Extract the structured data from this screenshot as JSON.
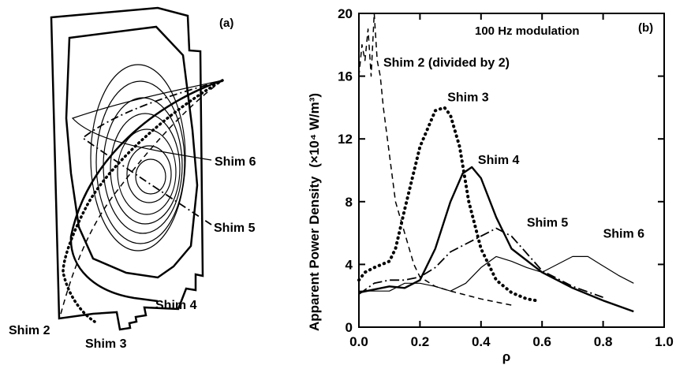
{
  "panel_a": {
    "label": "(a)",
    "shim_labels": [
      "Shim 2",
      "Shim 3",
      "Shim 4",
      "Shim 5",
      "Shim 6"
    ]
  },
  "chart_data": {
    "type": "line",
    "panel_label": "(b)",
    "title": "100 Hz modulation",
    "xlabel": "ρ",
    "ylabel": "Apparent Power Density (×10⁴ W/m³)",
    "ylabel_main": "Apparent  Power  Density",
    "ylabel_unit": "(×10⁴ W/m³)",
    "xlim": [
      0,
      1.0
    ],
    "ylim": [
      0,
      20
    ],
    "xticks": [
      "0.0",
      "0.2",
      "0.4",
      "0.6",
      "0.8",
      "1.0"
    ],
    "yticks": [
      "0",
      "4",
      "8",
      "12",
      "16",
      "20"
    ],
    "grid": false,
    "series": [
      {
        "name": "Shim 2 (divided by 2)",
        "style": "dashed",
        "x": [
          0.0,
          0.01,
          0.02,
          0.03,
          0.04,
          0.05,
          0.06,
          0.07,
          0.08,
          0.1,
          0.12,
          0.15,
          0.18,
          0.2,
          0.25,
          0.3,
          0.4,
          0.5
        ],
        "y": [
          16,
          18,
          17,
          19,
          16,
          20,
          17,
          16,
          14,
          11,
          8,
          6,
          4,
          3.2,
          2.6,
          2.3,
          1.8,
          1.4
        ]
      },
      {
        "name": "Shim 3",
        "style": "dotted",
        "x": [
          0.0,
          0.02,
          0.05,
          0.1,
          0.12,
          0.15,
          0.2,
          0.25,
          0.28,
          0.3,
          0.33,
          0.36,
          0.4,
          0.45,
          0.5,
          0.55,
          0.58
        ],
        "y": [
          3,
          3.5,
          3.8,
          4.2,
          5,
          7.5,
          11.5,
          13.8,
          14,
          13.5,
          11.5,
          8,
          5,
          3,
          2.2,
          1.8,
          1.7
        ]
      },
      {
        "name": "Shim 4",
        "style": "solid",
        "x": [
          0.0,
          0.05,
          0.1,
          0.15,
          0.2,
          0.25,
          0.3,
          0.34,
          0.37,
          0.4,
          0.45,
          0.5,
          0.6,
          0.7,
          0.8,
          0.9
        ],
        "y": [
          2.2,
          2.4,
          2.6,
          2.5,
          3,
          5,
          8,
          9.8,
          10.2,
          9.5,
          7,
          5,
          3.5,
          2.5,
          1.7,
          1.0
        ]
      },
      {
        "name": "Shim 5",
        "style": "dash-dot",
        "x": [
          0.0,
          0.05,
          0.1,
          0.15,
          0.2,
          0.25,
          0.3,
          0.35,
          0.4,
          0.45,
          0.5,
          0.6,
          0.7,
          0.8
        ],
        "y": [
          2.1,
          2.8,
          3.0,
          3.0,
          3.2,
          3.8,
          4.8,
          5.3,
          5.8,
          6.3,
          5.8,
          3.6,
          2.6,
          1.9
        ]
      },
      {
        "name": "Shim 6",
        "style": "thin",
        "x": [
          0.0,
          0.1,
          0.15,
          0.2,
          0.25,
          0.3,
          0.35,
          0.4,
          0.45,
          0.5,
          0.55,
          0.6,
          0.7,
          0.75,
          0.8,
          0.85,
          0.9
        ],
        "y": [
          2.3,
          2.3,
          2.8,
          2.8,
          2.6,
          2.3,
          2.8,
          3.8,
          4.5,
          4.2,
          3.8,
          3.5,
          4.5,
          4.5,
          3.9,
          3.3,
          2.8
        ]
      }
    ],
    "annotations": [
      {
        "text": "Shim 2 (divided by 2)",
        "x": 0.08,
        "y": 16.6
      },
      {
        "text": "Shim 3",
        "x": 0.29,
        "y": 14.4
      },
      {
        "text": "Shim 4",
        "x": 0.39,
        "y": 10.4
      },
      {
        "text": "Shim 5",
        "x": 0.55,
        "y": 6.4
      },
      {
        "text": "Shim 6",
        "x": 0.8,
        "y": 5.7
      }
    ]
  }
}
